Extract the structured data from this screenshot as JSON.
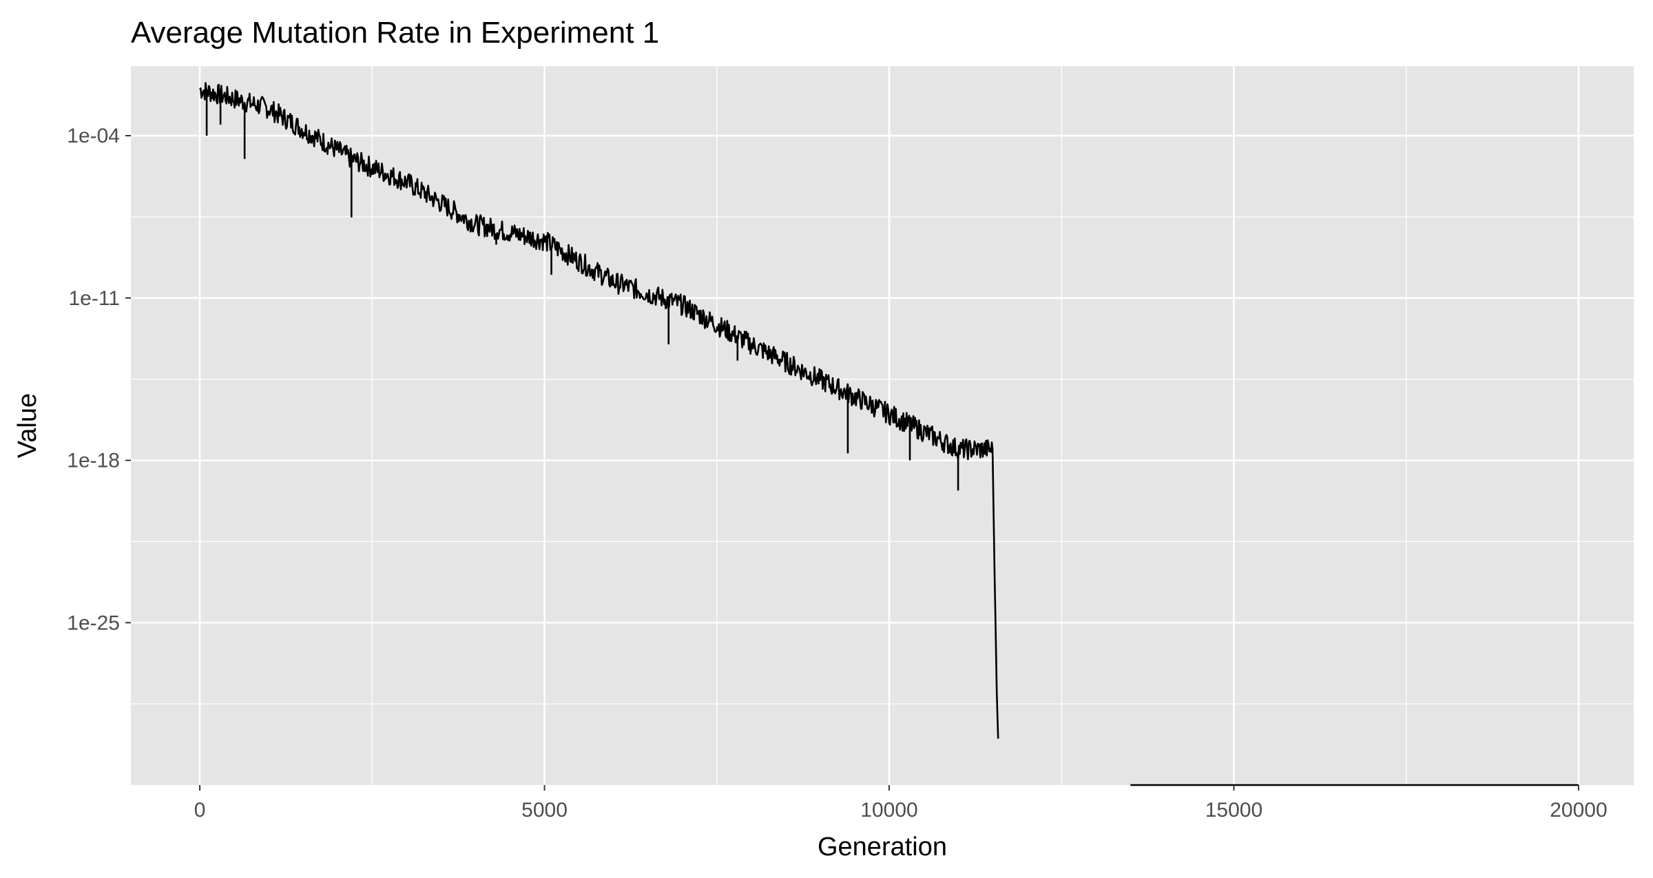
{
  "chart_data": {
    "type": "line",
    "title": "Average Mutation Rate in Experiment 1",
    "xlabel": "Generation",
    "ylabel": "Value",
    "x_scale": "linear",
    "y_scale": "log10",
    "xlim": [
      -1000,
      20800
    ],
    "ylim": [
      1e-32,
      0.1
    ],
    "x_ticks": [
      0,
      5000,
      10000,
      15000,
      20000
    ],
    "x_tick_labels": [
      "0",
      "5000",
      "10000",
      "15000",
      "20000"
    ],
    "y_ticks": [
      0.0001,
      1e-11,
      1e-18,
      1e-25
    ],
    "y_tick_labels": [
      "1e-04",
      "1e-11",
      "1e-18",
      "1e-25"
    ],
    "grid": true,
    "legend": "none",
    "background": "#e5e5e5",
    "grid_color": "#ffffff",
    "line_color": "#000000",
    "series": [
      {
        "values": [
          {
            "x": 0,
            "y": 0.01
          },
          {
            "x": 1000,
            "y": 0.0015
          },
          {
            "x": 2200,
            "y": 1e-05
          },
          {
            "x": 3000,
            "y": 1e-06
          },
          {
            "x": 4000,
            "y": 1.5e-08
          },
          {
            "x": 5000,
            "y": 3e-09
          },
          {
            "x": 6000,
            "y": 5e-11
          },
          {
            "x": 7000,
            "y": 5e-12
          },
          {
            "x": 8000,
            "y": 1e-13
          },
          {
            "x": 9000,
            "y": 3e-15
          },
          {
            "x": 10000,
            "y": 1e-16
          },
          {
            "x": 11000,
            "y": 3e-18
          },
          {
            "x": 11500,
            "y": 3e-18
          },
          {
            "x": 11530,
            "y": 1e-23
          },
          {
            "x": 11560,
            "y": 1e-28
          },
          {
            "x": 11580,
            "y": 1e-30
          }
        ]
      }
    ],
    "dips": [
      {
        "x": 100,
        "y": 0.0001
      },
      {
        "x": 300,
        "y": 0.0003
      },
      {
        "x": 650,
        "y": 1e-05
      },
      {
        "x": 2200,
        "y": 3e-08
      },
      {
        "x": 4300,
        "y": 2e-09
      },
      {
        "x": 5100,
        "y": 1e-10
      },
      {
        "x": 6800,
        "y": 1e-13
      },
      {
        "x": 7800,
        "y": 2e-14
      },
      {
        "x": 9400,
        "y": 2e-18
      },
      {
        "x": 10300,
        "y": 1e-18
      },
      {
        "x": 11000,
        "y": 5e-20
      }
    ],
    "flat_segment": {
      "x_start": 13500,
      "x_end": 20000,
      "y": 1e-32
    }
  }
}
